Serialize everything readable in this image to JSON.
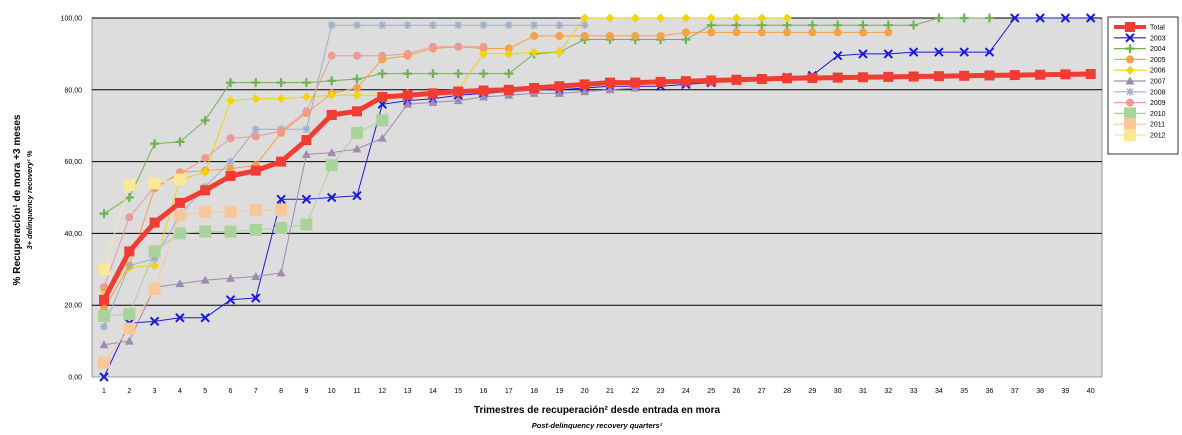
{
  "chart_data": {
    "type": "line",
    "title": "",
    "xlabel": "Trimestres de recuperación² desde entrada en mora",
    "xlabel_sub": "Post-delinquency recovery quarters²",
    "ylabel": "% Recuperación¹ de mora +3 meses",
    "ylabel_sub": "3+ delinquency recovery¹ %",
    "x": [
      1,
      2,
      3,
      4,
      5,
      6,
      7,
      8,
      9,
      10,
      11,
      12,
      13,
      14,
      15,
      16,
      17,
      18,
      19,
      20,
      21,
      22,
      23,
      24,
      25,
      26,
      27,
      28,
      29,
      30,
      31,
      32,
      33,
      34,
      35,
      36,
      37,
      38,
      39,
      40
    ],
    "xlim": [
      1,
      40
    ],
    "ylim": [
      0,
      100
    ],
    "y_ticks": [
      "0,00",
      "20,00",
      "40,00",
      "60,00",
      "80,00",
      "100,00"
    ],
    "grid": true,
    "legend_position": "right",
    "series": [
      {
        "name": "Total",
        "color": "#f03c32",
        "marker": "square",
        "width": 5,
        "values": [
          21.5,
          35,
          43,
          48.5,
          52,
          56,
          57.5,
          60,
          66,
          73,
          74,
          78,
          78.5,
          79,
          79.5,
          79.8,
          80,
          80.5,
          81,
          81.5,
          82,
          82,
          82.2,
          82.4,
          82.6,
          82.8,
          83,
          83.2,
          83.3,
          83.4,
          83.5,
          83.6,
          83.7,
          83.8,
          83.9,
          84,
          84.1,
          84.2,
          84.3,
          84.4
        ]
      },
      {
        "name": "2003",
        "color": "#1a1adb",
        "marker": "x",
        "width": 1,
        "values": [
          0,
          15,
          15.5,
          16.5,
          16.5,
          21.5,
          22,
          49.5,
          49.5,
          50,
          50.5,
          76,
          77,
          77.5,
          78.5,
          79,
          79.5,
          80,
          80,
          80.5,
          81,
          81,
          81,
          81.5,
          82,
          82.5,
          83,
          83.5,
          84,
          89.5,
          90,
          90,
          90.5,
          90.5,
          90.5,
          90.5,
          100,
          100,
          100,
          100
        ]
      },
      {
        "name": "2004",
        "color": "#6fb256",
        "marker": "plus",
        "width": 1,
        "values": [
          45.5,
          50,
          65,
          65.5,
          71.5,
          82,
          82,
          82,
          82,
          82.5,
          83,
          84.5,
          84.5,
          84.5,
          84.5,
          84.5,
          84.5,
          90,
          90.5,
          94,
          94,
          94,
          94,
          94,
          98,
          98,
          98,
          98,
          98,
          98,
          98,
          98,
          98,
          100,
          100,
          100,
          null,
          null,
          null,
          null
        ]
      },
      {
        "name": "2005",
        "color": "#f7a045",
        "marker": "circle",
        "width": 1,
        "values": [
          19,
          31,
          52.5,
          57,
          57.5,
          58,
          59,
          68,
          73.5,
          79,
          80.5,
          88.5,
          89.5,
          91.5,
          92,
          91.5,
          91.5,
          95,
          95,
          95,
          95,
          95,
          95,
          96,
          96,
          96,
          96,
          96,
          96,
          96,
          96,
          96,
          null,
          null,
          null,
          null,
          null,
          null,
          null,
          null
        ]
      },
      {
        "name": "2006",
        "color": "#f2d40a",
        "marker": "diamond",
        "width": 1,
        "values": [
          24,
          30.5,
          31,
          55,
          57,
          77,
          77.5,
          77.5,
          78,
          78.5,
          78.5,
          78.5,
          79,
          79.5,
          80,
          90,
          90,
          90.5,
          90.5,
          100,
          100,
          100,
          100,
          100,
          100,
          100,
          100,
          100,
          null,
          null,
          null,
          null,
          null,
          null,
          null,
          null,
          null,
          null,
          null,
          null
        ]
      },
      {
        "name": "2007",
        "color": "#a08ab0",
        "marker": "triangle",
        "width": 1,
        "values": [
          9,
          10,
          25,
          26,
          27,
          27.5,
          28,
          29,
          62,
          62.5,
          63.5,
          66.5,
          76,
          76.5,
          77,
          78,
          78.5,
          79,
          79,
          79.5,
          80,
          80.5,
          null,
          null,
          null,
          null,
          null,
          null,
          null,
          null,
          null,
          null,
          null,
          null,
          null,
          null,
          null,
          null,
          null,
          null
        ]
      },
      {
        "name": "2008",
        "color": "#9eaec8",
        "marker": "star",
        "width": 1,
        "values": [
          14,
          31,
          33,
          45,
          53,
          60,
          69,
          69,
          69,
          98,
          98,
          98,
          98,
          98,
          98,
          98,
          98,
          98,
          98,
          98,
          null,
          null,
          null,
          null,
          null,
          null,
          null,
          null,
          null,
          null,
          null,
          null,
          null,
          null,
          null,
          null,
          null,
          null,
          null,
          null
        ]
      },
      {
        "name": "2009",
        "color": "#ec9a92",
        "marker": "circle",
        "width": 1,
        "values": [
          25,
          44.5,
          53,
          56.5,
          61,
          66.5,
          67,
          68.5,
          74,
          89.5,
          89.5,
          89.5,
          90,
          92,
          92,
          92,
          null,
          null,
          null,
          null,
          null,
          null,
          null,
          null,
          null,
          null,
          null,
          null,
          null,
          null,
          null,
          null,
          null,
          null,
          null,
          null,
          null,
          null,
          null,
          null
        ]
      },
      {
        "name": "2010",
        "color": "#a9d39a",
        "marker": "bigsquare",
        "width": 1,
        "values": [
          17,
          17.5,
          35,
          40,
          40.5,
          40.5,
          41,
          41.5,
          42.5,
          59,
          68,
          71.5,
          null,
          null,
          null,
          null,
          null,
          null,
          null,
          null,
          null,
          null,
          null,
          null,
          null,
          null,
          null,
          null,
          null,
          null,
          null,
          null,
          null,
          null,
          null,
          null,
          null,
          null,
          null,
          null
        ]
      },
      {
        "name": "2011",
        "color": "#fac79b",
        "marker": "bigsquare",
        "width": 1,
        "values": [
          4,
          13.5,
          24.5,
          45,
          46,
          46,
          46.5,
          46.5,
          null,
          null,
          null,
          null,
          null,
          null,
          null,
          null,
          null,
          null,
          null,
          null,
          null,
          null,
          null,
          null,
          null,
          null,
          null,
          null,
          null,
          null,
          null,
          null,
          null,
          null,
          null,
          null,
          null,
          null,
          null,
          null
        ]
      },
      {
        "name": "2012",
        "color": "#fbe79a",
        "marker": "bigsquare",
        "width": 1,
        "values": [
          30,
          53.5,
          54,
          55,
          null,
          null,
          null,
          null,
          null,
          null,
          null,
          null,
          null,
          null,
          null,
          null,
          null,
          null,
          null,
          null,
          null,
          null,
          null,
          null,
          null,
          null,
          null,
          null,
          null,
          null,
          null,
          null,
          null,
          null,
          null,
          null,
          null,
          null,
          null,
          null
        ]
      }
    ]
  }
}
